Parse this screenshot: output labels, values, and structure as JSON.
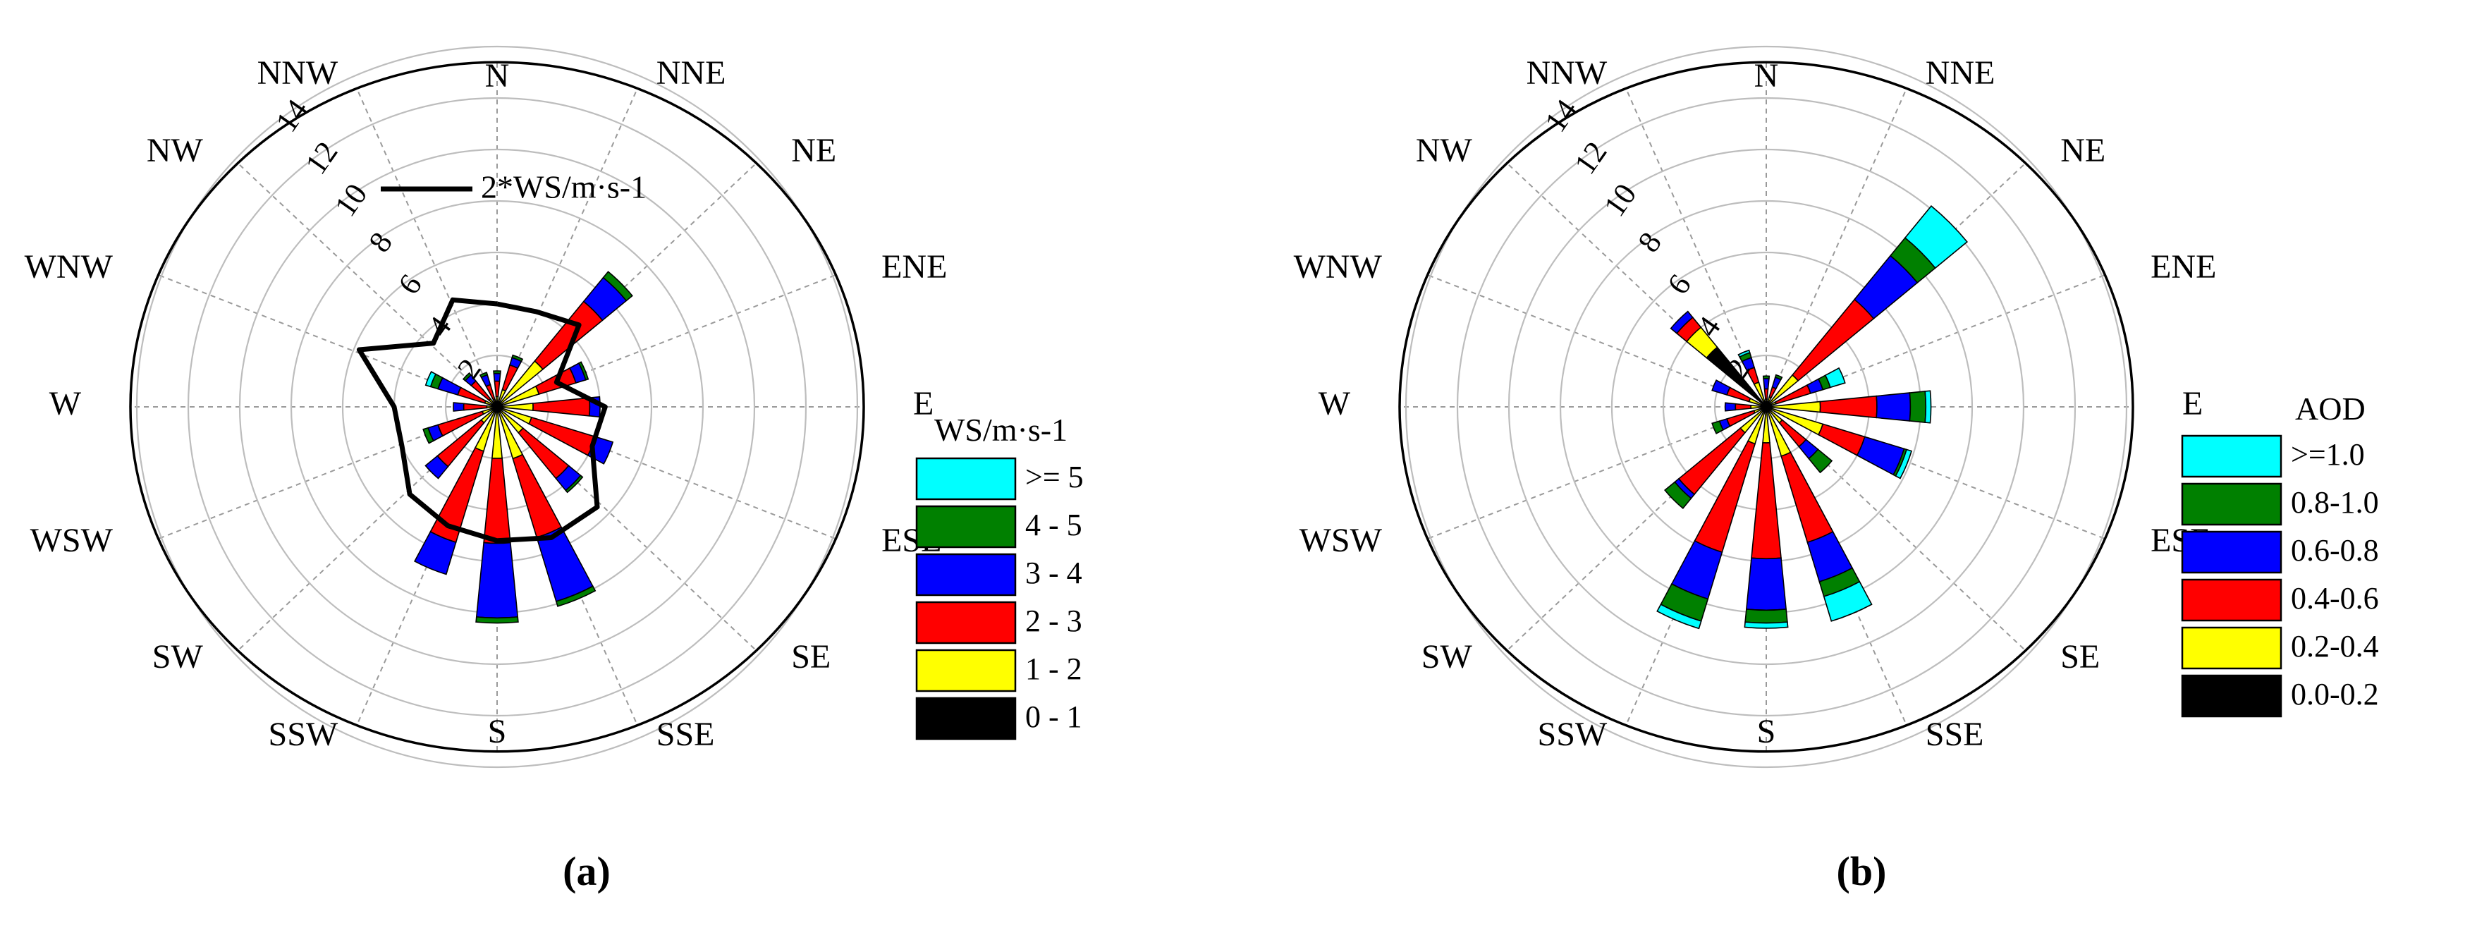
{
  "chart_data": [
    {
      "type": "polar-stacked-bar",
      "panel_label": "(a)",
      "directions": [
        "N",
        "NNE",
        "NE",
        "ENE",
        "E",
        "ESE",
        "SE",
        "SSE",
        "S",
        "SSW",
        "SW",
        "WSW",
        "W",
        "WNW",
        "NW",
        "NNW"
      ],
      "radial_ticks": [
        2,
        4,
        6,
        8,
        10,
        12,
        14
      ],
      "rmax": 14,
      "grid": true,
      "legend_title": "WS/m·s-1",
      "legend_position": "right",
      "series": [
        {
          "name": "0 - 1",
          "color": "#000000",
          "values": [
            0.1,
            0.1,
            0.1,
            0.1,
            0.1,
            0.1,
            0.1,
            0.1,
            0.1,
            0.1,
            0.1,
            0.1,
            0.1,
            0.1,
            0.1,
            0.1
          ]
        },
        {
          "name": "1 - 2",
          "color": "#ffff00",
          "values": [
            0.3,
            0.6,
            2.2,
            1.6,
            1.3,
            1.3,
            1.2,
            2.0,
            1.9,
            1.7,
            0.7,
            0.5,
            0.3,
            0.4,
            0.3,
            0.2
          ]
        },
        {
          "name": "2 - 3",
          "color": "#ff0000",
          "values": [
            0.6,
            1.0,
            3.0,
            1.5,
            2.2,
            2.6,
            2.3,
            3.2,
            3.3,
            3.7,
            2.2,
            1.8,
            0.9,
            1.1,
            0.9,
            0.6
          ]
        },
        {
          "name": "3 - 4",
          "color": "#0000ff",
          "values": [
            0.3,
            0.3,
            1.2,
            0.4,
            0.4,
            0.7,
            0.6,
            2.6,
            2.9,
            1.3,
            0.6,
            0.4,
            0.4,
            0.8,
            0.3,
            0.4
          ]
        },
        {
          "name": "4 - 5",
          "color": "#008000",
          "values": [
            0.1,
            0.1,
            0.3,
            0.1,
            0.0,
            0.0,
            0.1,
            0.2,
            0.2,
            0.0,
            0.0,
            0.2,
            0.0,
            0.3,
            0.1,
            0.1
          ]
        },
        {
          "name": ">= 5",
          "color": "#00ffff",
          "values": [
            0.0,
            0.0,
            0.0,
            0.0,
            0.0,
            0.0,
            0.0,
            0.0,
            0.0,
            0.0,
            0.0,
            0.0,
            0.0,
            0.2,
            0.0,
            0.0
          ]
        }
      ],
      "line_series": {
        "name": "2*WS/m·s-1",
        "color": "#000000",
        "values": [
          4.0,
          4.0,
          4.5,
          2.5,
          4.2,
          4.0,
          5.5,
          5.5,
          5.2,
          5.0,
          4.8,
          4.0,
          4.0,
          5.8,
          3.5,
          4.5
        ]
      }
    },
    {
      "type": "polar-stacked-bar",
      "panel_label": "(b)",
      "directions": [
        "N",
        "NNE",
        "NE",
        "ENE",
        "E",
        "ESE",
        "SE",
        "SSE",
        "S",
        "SSW",
        "SW",
        "WSW",
        "W",
        "WNW",
        "NW",
        "NNW"
      ],
      "radial_ticks": [
        2,
        4,
        6,
        8,
        10,
        12,
        14
      ],
      "rmax": 14,
      "grid": true,
      "legend_title": "AOD",
      "legend_position": "right",
      "series": [
        {
          "name": "0.0-0.2",
          "color": "#000000",
          "values": [
            0.1,
            0.1,
            0.1,
            0.1,
            0.1,
            0.1,
            0.1,
            0.1,
            0.1,
            0.1,
            0.1,
            0.1,
            0.1,
            0.1,
            3.0,
            0.1
          ]
        },
        {
          "name": "0.2-0.4",
          "color": "#ffff00",
          "values": [
            0.2,
            0.3,
            1.5,
            0.3,
            2.0,
            2.2,
            0.7,
            1.9,
            1.3,
            1.4,
            1.2,
            0.4,
            0.5,
            0.6,
            1.0,
            0.9
          ]
        },
        {
          "name": "0.4-0.6",
          "color": "#ff0000",
          "values": [
            0.4,
            0.4,
            3.8,
            1.4,
            2.2,
            1.7,
            1.2,
            3.5,
            4.5,
            4.4,
            3.1,
            1.1,
            0.6,
            0.9,
            0.5,
            0.6
          ]
        },
        {
          "name": "0.6-0.8",
          "color": "#0000ff",
          "values": [
            0.4,
            0.4,
            2.2,
            0.5,
            1.3,
            1.6,
            0.6,
            1.6,
            2.0,
            1.9,
            0.2,
            0.3,
            0.4,
            0.6,
            0.3,
            0.4
          ]
        },
        {
          "name": "0.8-1.0",
          "color": "#008000",
          "values": [
            0.1,
            0.1,
            0.9,
            0.3,
            0.6,
            0.1,
            0.7,
            0.6,
            0.5,
            0.9,
            0.5,
            0.3,
            0.0,
            0.0,
            0.0,
            0.2
          ]
        },
        {
          "name": ">=1.0",
          "color": "#00ffff",
          "values": [
            0.0,
            0.0,
            1.6,
            0.6,
            0.2,
            0.2,
            0.0,
            1.0,
            0.2,
            0.3,
            0.0,
            0.0,
            0.0,
            0.0,
            0.0,
            0.1
          ]
        }
      ]
    }
  ]
}
